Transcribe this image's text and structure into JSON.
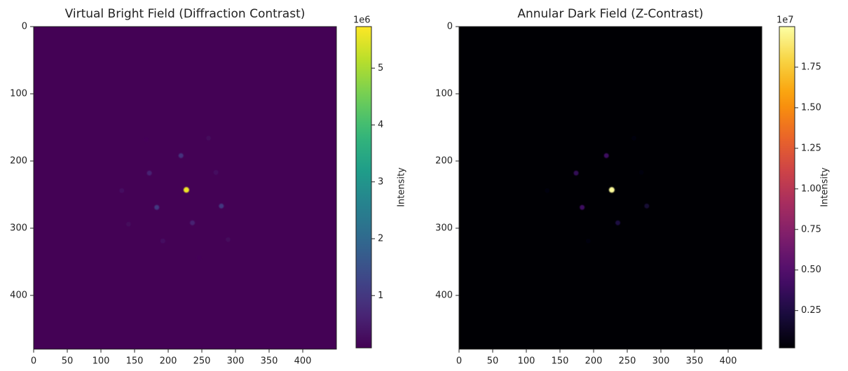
{
  "chart_data": [
    {
      "type": "heatmap",
      "title": "Virtual Bright Field (Diffraction Contrast)",
      "xlim": [
        0,
        450
      ],
      "ylim": [
        0,
        480
      ],
      "xticks": [
        0,
        50,
        100,
        150,
        200,
        250,
        300,
        350,
        400
      ],
      "yticks": [
        0,
        100,
        200,
        300,
        400
      ],
      "colormap": "viridis",
      "background": 0.1,
      "colorbar": {
        "label": "Intensity",
        "offset": "1e6",
        "lim": [
          0.08,
          5.73
        ],
        "ticks": [
          1,
          2,
          3,
          4,
          5
        ]
      },
      "spots": [
        {
          "x": 227,
          "y": 243,
          "value": 5.6
        },
        {
          "x": 219,
          "y": 192,
          "value": 0.9
        },
        {
          "x": 172,
          "y": 218,
          "value": 0.6
        },
        {
          "x": 183,
          "y": 269,
          "value": 1.0
        },
        {
          "x": 279,
          "y": 267,
          "value": 1.0
        },
        {
          "x": 236,
          "y": 292,
          "value": 0.6
        },
        {
          "x": 131,
          "y": 244,
          "value": 0.3
        },
        {
          "x": 192,
          "y": 319,
          "value": 0.3
        },
        {
          "x": 260,
          "y": 166,
          "value": 0.2
        },
        {
          "x": 271,
          "y": 217,
          "value": 0.3
        },
        {
          "x": 141,
          "y": 294,
          "value": 0.2
        },
        {
          "x": 289,
          "y": 317,
          "value": 0.2
        },
        {
          "x": 246,
          "y": 344,
          "value": 0.15
        },
        {
          "x": 167,
          "y": 168,
          "value": 0.15
        }
      ]
    },
    {
      "type": "heatmap",
      "title": "Annular Dark Field (Z-Contrast)",
      "xlim": [
        0,
        450
      ],
      "ylim": [
        0,
        480
      ],
      "xticks": [
        0,
        50,
        100,
        150,
        200,
        250,
        300,
        350,
        400
      ],
      "yticks": [
        0,
        100,
        200,
        300,
        400
      ],
      "colormap": "inferno",
      "background": 0.02,
      "colorbar": {
        "label": "Intensity",
        "offset": "1e7",
        "lim": [
          0.02,
          2.0
        ],
        "ticks": [
          0.25,
          {
            "value": 0.5,
            "label": "0.50"
          },
          0.75,
          {
            "value": 1,
            "label": "1.00"
          },
          1.25,
          {
            "value": 1.5,
            "label": "1.50"
          },
          1.75
        ]
      },
      "spots": [
        {
          "x": 227,
          "y": 243,
          "value": 1.98
        },
        {
          "x": 219,
          "y": 192,
          "value": 0.4
        },
        {
          "x": 174,
          "y": 218,
          "value": 0.35
        },
        {
          "x": 183,
          "y": 269,
          "value": 0.4
        },
        {
          "x": 279,
          "y": 267,
          "value": 0.2
        },
        {
          "x": 236,
          "y": 292,
          "value": 0.25
        },
        {
          "x": 131,
          "y": 244,
          "value": 0.05
        },
        {
          "x": 271,
          "y": 217,
          "value": 0.05
        },
        {
          "x": 260,
          "y": 166,
          "value": 0.05
        },
        {
          "x": 192,
          "y": 319,
          "value": 0.05
        }
      ]
    }
  ]
}
